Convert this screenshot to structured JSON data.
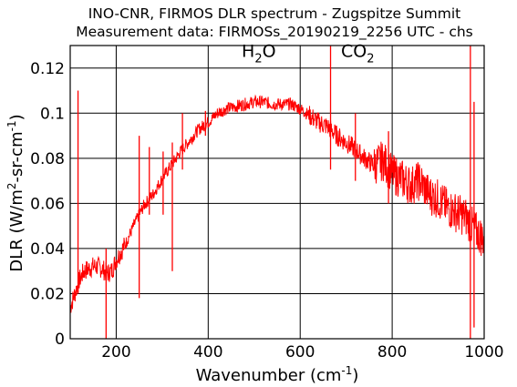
{
  "chart_data": {
    "type": "line",
    "title": "INO-CNR, FIRMOS DLR spectrum - Zugspitze Summit",
    "subtitle": "Measurement data: FIRMOSs_20190219_2256 UTC - chs",
    "xlabel": {
      "base": "Wavenumber (cm",
      "sup": "-1",
      "end": ")"
    },
    "ylabel": {
      "p1": "DLR (W/m",
      "sup1": "2",
      "p2": "-sr-cm",
      "sup2": "-1",
      "p3": ")"
    },
    "xlim": [
      100,
      1000
    ],
    "ylim": [
      0,
      0.13
    ],
    "xticks": [
      200,
      400,
      600,
      800,
      1000
    ],
    "xtick_labels": [
      "200",
      "400",
      "600",
      "800",
      "1000"
    ],
    "yticks": [
      0,
      0.02,
      0.04,
      0.06,
      0.08,
      0.1,
      0.12
    ],
    "ytick_labels": [
      "0",
      "0.02",
      "0.04",
      "0.06",
      "0.08",
      "0.1",
      "0.12"
    ],
    "grid": true,
    "annotations": [
      {
        "base": "H",
        "sub": "2",
        "rest": "O",
        "x": 510,
        "y": 0.125
      },
      {
        "base": "CO",
        "sub": "2",
        "rest": "",
        "x": 725,
        "y": 0.125
      }
    ],
    "series": [
      {
        "color": "#ff0000",
        "x": [
          100,
          110,
          120,
          130,
          140,
          150,
          160,
          170,
          180,
          190,
          200,
          220,
          240,
          260,
          280,
          300,
          320,
          340,
          360,
          380,
          400,
          420,
          440,
          460,
          480,
          500,
          520,
          540,
          560,
          580,
          600,
          620,
          640,
          660,
          680,
          700,
          720,
          740,
          760,
          780,
          800,
          820,
          840,
          860,
          880,
          900,
          920,
          940,
          960,
          980,
          1000
        ],
        "y": [
          0.014,
          0.02,
          0.026,
          0.03,
          0.031,
          0.032,
          0.032,
          0.031,
          0.029,
          0.03,
          0.035,
          0.042,
          0.051,
          0.059,
          0.064,
          0.071,
          0.077,
          0.083,
          0.088,
          0.093,
          0.096,
          0.1,
          0.102,
          0.103,
          0.104,
          0.105,
          0.105,
          0.104,
          0.104,
          0.104,
          0.102,
          0.099,
          0.096,
          0.094,
          0.09,
          0.087,
          0.084,
          0.08,
          0.077,
          0.079,
          0.073,
          0.071,
          0.068,
          0.07,
          0.064,
          0.062,
          0.058,
          0.056,
          0.054,
          0.048,
          0.044
        ]
      }
    ],
    "spikes": [
      {
        "x": 117,
        "lo": 0.02,
        "hi": 0.11
      },
      {
        "x": 178,
        "lo": 0.0,
        "hi": 0.04
      },
      {
        "x": 250,
        "lo": 0.018,
        "hi": 0.09
      },
      {
        "x": 272,
        "lo": 0.055,
        "hi": 0.085
      },
      {
        "x": 302,
        "lo": 0.055,
        "hi": 0.083
      },
      {
        "x": 322,
        "lo": 0.03,
        "hi": 0.087
      },
      {
        "x": 344,
        "lo": 0.075,
        "hi": 0.1
      },
      {
        "x": 394,
        "lo": 0.09,
        "hi": 0.101
      },
      {
        "x": 666,
        "lo": 0.075,
        "hi": 0.13
      },
      {
        "x": 720,
        "lo": 0.07,
        "hi": 0.1
      },
      {
        "x": 792,
        "lo": 0.06,
        "hi": 0.092
      },
      {
        "x": 970,
        "lo": 0.0,
        "hi": 0.13
      },
      {
        "x": 978,
        "lo": 0.005,
        "hi": 0.105
      }
    ]
  }
}
